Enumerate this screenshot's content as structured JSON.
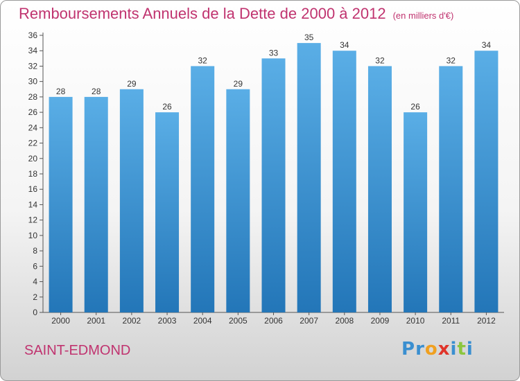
{
  "title": "Remboursements Annuels de la Dette de 2000 à 2012",
  "unit": "(en milliers d'€)",
  "city": "SAINT-EDMOND",
  "logo": {
    "letters": [
      {
        "ch": "P",
        "color": "#3a8fd0"
      },
      {
        "ch": "r",
        "color": "#3a8fd0"
      },
      {
        "ch": "o",
        "color": "#f0a020"
      },
      {
        "ch": "x",
        "color": "#e0342a"
      },
      {
        "ch": "i",
        "color": "#3a8fd0"
      },
      {
        "ch": "t",
        "color": "#8cc63e"
      },
      {
        "ch": "i",
        "color": "#3a8fd0"
      }
    ]
  },
  "colors": {
    "bar_top": "#5aaee6",
    "bar_bottom": "#2376b8",
    "text": "#333333",
    "accent": "#c0336f"
  },
  "chart_data": {
    "type": "bar",
    "title": "Remboursements Annuels de la Dette de 2000 à 2012",
    "categories": [
      "2000",
      "2001",
      "2002",
      "2003",
      "2004",
      "2005",
      "2006",
      "2007",
      "2008",
      "2009",
      "2010",
      "2011",
      "2012"
    ],
    "values": [
      28,
      28,
      29,
      26,
      32,
      29,
      33,
      35,
      34,
      32,
      26,
      32,
      34
    ],
    "ylim": [
      0,
      36
    ],
    "yticks": [
      0,
      2,
      4,
      6,
      8,
      10,
      12,
      14,
      16,
      18,
      20,
      22,
      24,
      26,
      28,
      30,
      32,
      34,
      36
    ],
    "grid": false,
    "legend": "none"
  }
}
